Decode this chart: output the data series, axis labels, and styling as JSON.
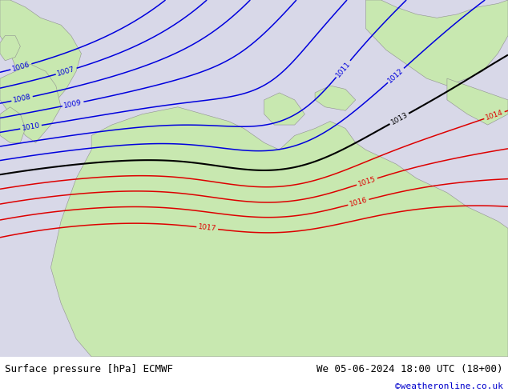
{
  "title_left": "Surface pressure [hPa] ECMWF",
  "title_right": "We 05-06-2024 18:00 UTC (18+00)",
  "credit": "©weatheronline.co.uk",
  "sea_color": "#d8d8e8",
  "land_color": "#c8e8b0",
  "border_color": "#909090",
  "blue_color": "#0000dd",
  "red_color": "#dd0000",
  "black_color": "#000000",
  "footer_fontsize": 9,
  "credit_color": "#0000cc",
  "white": "#ffffff"
}
